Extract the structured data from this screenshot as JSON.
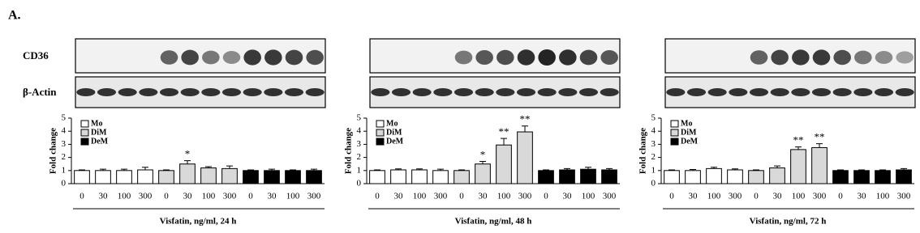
{
  "figure_label": "A.",
  "blot_labels": [
    "CD36",
    "β-Actin"
  ],
  "chart_data": [
    {
      "type": "bar",
      "x_label": "Visfatin, ng/ml, 24 h",
      "y_label": "Fold change",
      "categories": [
        "0",
        "30",
        "100",
        "300",
        "0",
        "30",
        "100",
        "300",
        "0",
        "30",
        "100",
        "300"
      ],
      "ylim": [
        0,
        5
      ],
      "yticks": [
        0,
        1,
        2,
        3,
        4,
        5
      ],
      "series": [
        {
          "name": "Mo",
          "color": "#ffffff",
          "values": [
            1.0,
            1.0,
            1.0,
            1.05,
            null,
            null,
            null,
            null,
            null,
            null,
            null,
            null
          ],
          "errors": [
            0.05,
            0.1,
            0.1,
            0.2,
            null,
            null,
            null,
            null,
            null,
            null,
            null,
            null
          ]
        },
        {
          "name": "DiM",
          "color": "#d9d9d9",
          "values": [
            null,
            null,
            null,
            null,
            1.0,
            1.5,
            1.2,
            1.15,
            null,
            null,
            null,
            null
          ],
          "errors": [
            null,
            null,
            null,
            null,
            0.05,
            0.25,
            0.1,
            0.2,
            null,
            null,
            null,
            null
          ],
          "markers": [
            null,
            null,
            null,
            null,
            null,
            "*",
            null,
            null,
            null,
            null,
            null,
            null
          ]
        },
        {
          "name": "DeM",
          "color": "#000000",
          "values": [
            null,
            null,
            null,
            null,
            null,
            null,
            null,
            null,
            1.0,
            1.0,
            1.0,
            1.0
          ],
          "errors": [
            null,
            null,
            null,
            null,
            null,
            null,
            null,
            null,
            0.05,
            0.1,
            0.05,
            0.1
          ]
        }
      ]
    },
    {
      "type": "bar",
      "x_label": "Visfatin, ng/ml, 48 h",
      "y_label": "Fold change",
      "categories": [
        "0",
        "30",
        "100",
        "300",
        "0",
        "30",
        "100",
        "300",
        "0",
        "30",
        "100",
        "300"
      ],
      "ylim": [
        0,
        5
      ],
      "yticks": [
        0,
        1,
        2,
        3,
        4,
        5
      ],
      "series": [
        {
          "name": "Mo",
          "color": "#ffffff",
          "values": [
            1.0,
            1.05,
            1.05,
            1.0,
            null,
            null,
            null,
            null,
            null,
            null,
            null,
            null
          ],
          "errors": [
            0.05,
            0.08,
            0.08,
            0.1,
            null,
            null,
            null,
            null,
            null,
            null,
            null,
            null
          ]
        },
        {
          "name": "DiM",
          "color": "#d9d9d9",
          "values": [
            null,
            null,
            null,
            null,
            1.0,
            1.5,
            2.95,
            3.95,
            null,
            null,
            null,
            null
          ],
          "errors": [
            null,
            null,
            null,
            null,
            0.05,
            0.2,
            0.5,
            0.45,
            null,
            null,
            null,
            null
          ],
          "markers": [
            null,
            null,
            null,
            null,
            null,
            "*",
            "**",
            "**",
            null,
            null,
            null,
            null
          ]
        },
        {
          "name": "DeM",
          "color": "#000000",
          "values": [
            null,
            null,
            null,
            null,
            null,
            null,
            null,
            null,
            1.0,
            1.05,
            1.1,
            1.05
          ],
          "errors": [
            null,
            null,
            null,
            null,
            null,
            null,
            null,
            null,
            0.05,
            0.1,
            0.15,
            0.1
          ]
        }
      ]
    },
    {
      "type": "bar",
      "x_label": "Visfatin, ng/ml, 72 h",
      "y_label": "Fold change",
      "categories": [
        "0",
        "30",
        "100",
        "300",
        "0",
        "30",
        "100",
        "300",
        "0",
        "30",
        "100",
        "300"
      ],
      "ylim": [
        0,
        5
      ],
      "yticks": [
        0,
        1,
        2,
        3,
        4,
        5
      ],
      "series": [
        {
          "name": "Mo",
          "color": "#ffffff",
          "values": [
            1.0,
            1.0,
            1.15,
            1.05,
            null,
            null,
            null,
            null,
            null,
            null,
            null,
            null
          ],
          "errors": [
            0.05,
            0.08,
            0.1,
            0.08,
            null,
            null,
            null,
            null,
            null,
            null,
            null,
            null
          ]
        },
        {
          "name": "DiM",
          "color": "#d9d9d9",
          "values": [
            null,
            null,
            null,
            null,
            1.0,
            1.2,
            2.6,
            2.75,
            null,
            null,
            null,
            null
          ],
          "errors": [
            null,
            null,
            null,
            null,
            0.05,
            0.15,
            0.2,
            0.3,
            null,
            null,
            null,
            null
          ],
          "markers": [
            null,
            null,
            null,
            null,
            null,
            null,
            "**",
            "**",
            null,
            null,
            null,
            null
          ]
        },
        {
          "name": "DeM",
          "color": "#000000",
          "values": [
            null,
            null,
            null,
            null,
            null,
            null,
            null,
            null,
            1.0,
            1.0,
            1.0,
            1.05
          ],
          "errors": [
            null,
            null,
            null,
            null,
            null,
            null,
            null,
            null,
            0.05,
            0.05,
            0.05,
            0.1
          ]
        }
      ]
    }
  ]
}
